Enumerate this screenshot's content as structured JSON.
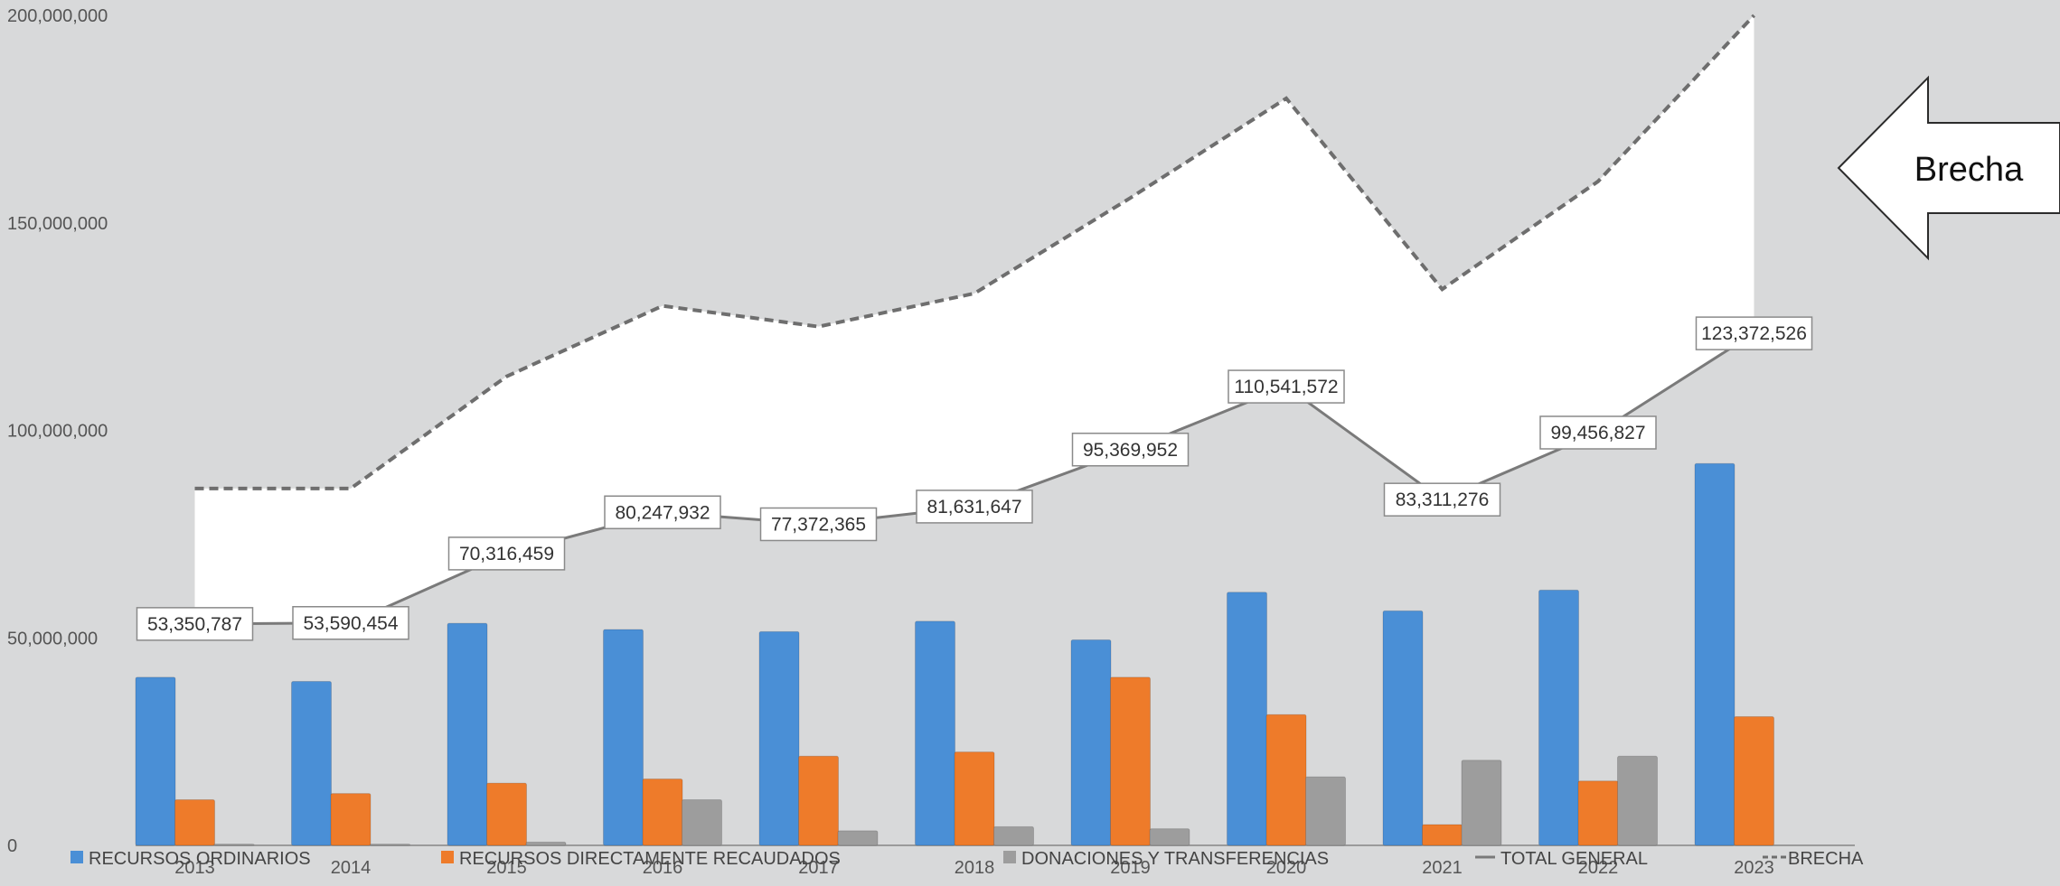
{
  "chart_data": {
    "type": "bar",
    "categories": [
      "2013",
      "2014",
      "2015",
      "2016",
      "2017",
      "2018",
      "2019",
      "2020",
      "2021",
      "2022",
      "2023"
    ],
    "series": [
      {
        "name": "RECURSOS ORDINARIOS",
        "kind": "bar",
        "color": "#4a8fd6",
        "values": [
          40500000,
          39500000,
          53500000,
          52000000,
          51500000,
          54000000,
          49500000,
          61000000,
          56500000,
          61500000,
          92000000
        ]
      },
      {
        "name": "RECURSOS DIRECTAMENTE RECAUDADOS",
        "kind": "bar",
        "color": "#ee7b2a",
        "values": [
          11000000,
          12500000,
          15000000,
          16000000,
          21500000,
          22500000,
          40500000,
          31500000,
          5000000,
          15500000,
          31000000
        ]
      },
      {
        "name": "DONACIONES Y TRANSFERENCIAS",
        "kind": "bar",
        "color": "#9d9d9d",
        "values": [
          300000,
          300000,
          800000,
          11000000,
          3500000,
          4500000,
          4000000,
          16500000,
          20500000,
          21500000,
          0
        ]
      },
      {
        "name": "TOTAL GENERAL",
        "kind": "line",
        "color": "#7a7a7a",
        "values": [
          53350787,
          53590454,
          70316459,
          80247932,
          77372365,
          81631647,
          95369952,
          110541572,
          83311276,
          99456827,
          123372526
        ],
        "labels": [
          "53,350,787",
          "53,590,454",
          "70,316,459",
          "80,247,932",
          "77,372,365",
          "81,631,647",
          "95,369,952",
          "110,541,572",
          "83,311,276",
          "99,456,827",
          "123,372,526"
        ]
      },
      {
        "name": "BRECHA",
        "kind": "dashed-line",
        "color": "#6e6e6e",
        "values": [
          86000000,
          86000000,
          113000000,
          130000000,
          125000000,
          133000000,
          156000000,
          180000000,
          134000000,
          160000000,
          200000000
        ]
      }
    ],
    "ylim": [
      0,
      200000000
    ],
    "yticks": [
      "0",
      "50,000,000",
      "100,000,000",
      "150,000,000",
      "200,000,000"
    ],
    "ytick_values": [
      0,
      50000000,
      100000000,
      150000000,
      200000000
    ],
    "grid": false,
    "legend_position": "bottom",
    "annotation": "Brecha"
  }
}
